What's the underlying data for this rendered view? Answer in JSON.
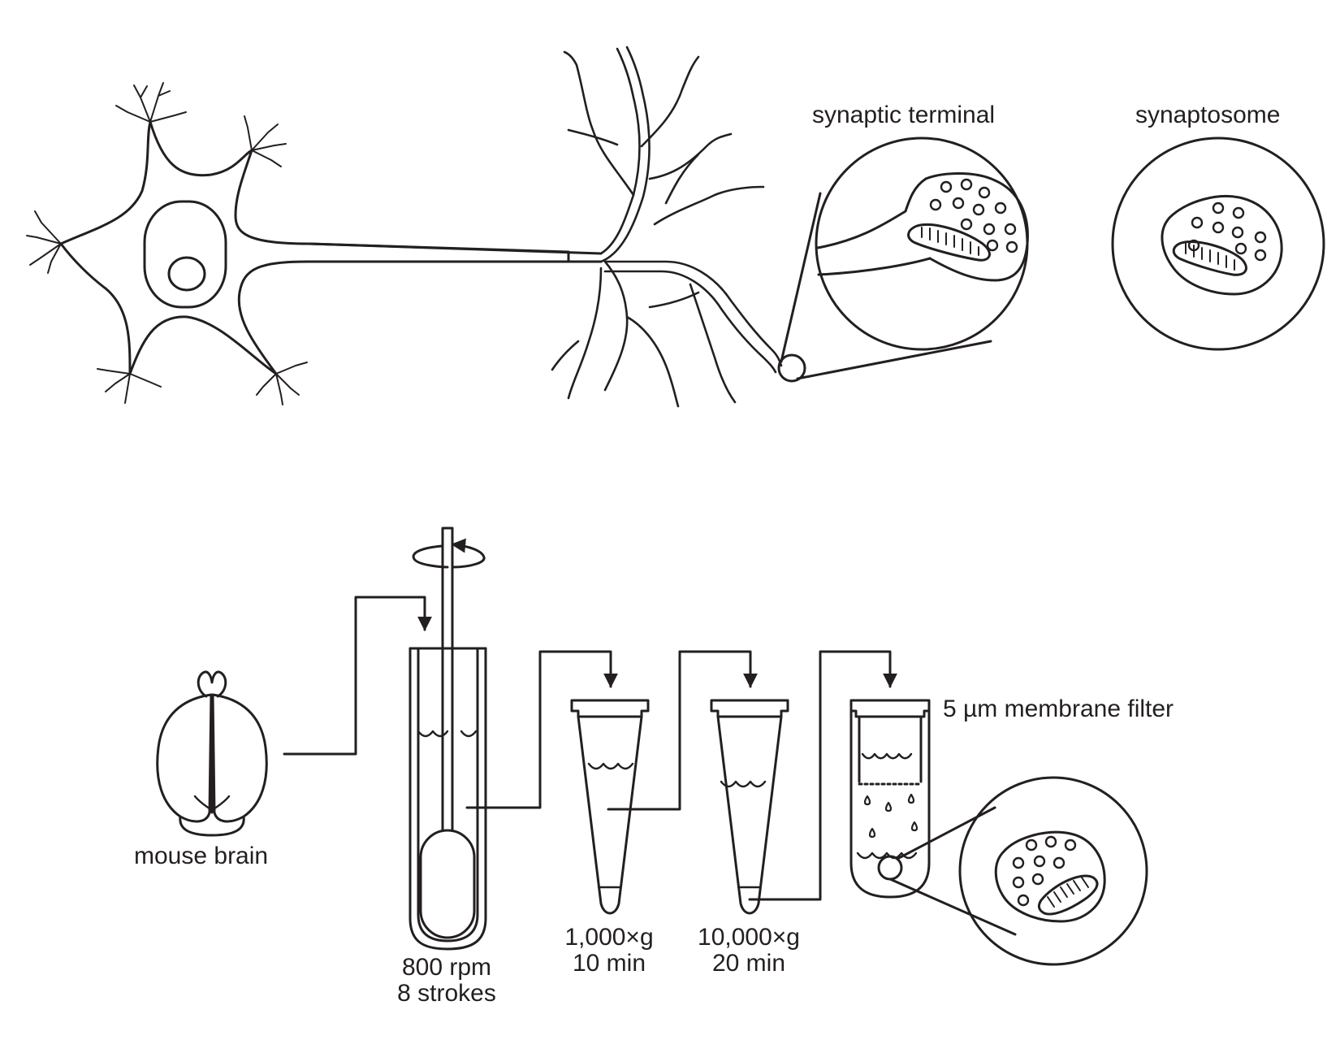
{
  "labels": {
    "synaptic_terminal": "synaptic terminal",
    "synaptosome": "synaptosome",
    "mouse_brain": "mouse brain",
    "filter": "5 µm membrane filter",
    "homogenizer_speed": "800 rpm",
    "homogenizer_strokes": "8 strokes",
    "spin1_force": "1,000×g",
    "spin1_time": "10 min",
    "spin2_force": "10,000×g",
    "spin2_time": "20 min"
  },
  "colors": {
    "stroke": "#231f20",
    "background": "#ffffff"
  }
}
